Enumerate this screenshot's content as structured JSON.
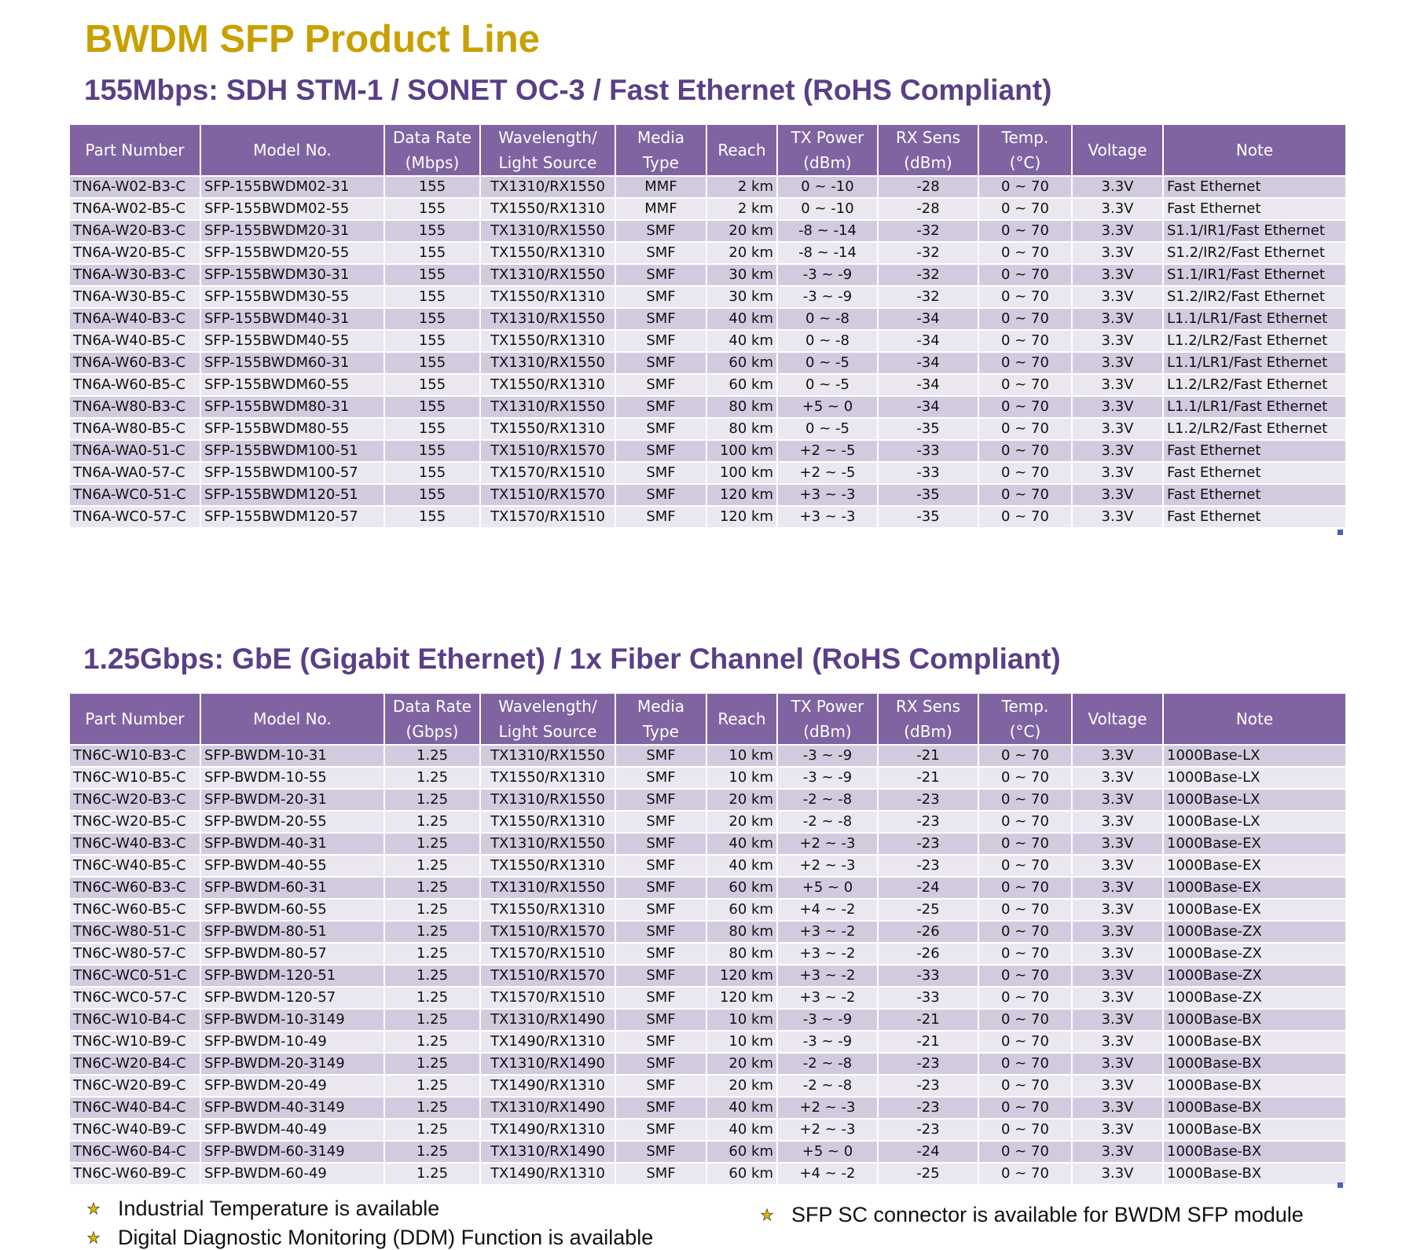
{
  "title": "BWDM SFP Product Line",
  "sections": [
    {
      "heading": "155Mbps: SDH STM-1 / SONET OC-3 / Fast Ethernet (RoHS Compliant)",
      "columns": [
        "Part Number",
        "Model No.",
        "Data Rate (Mbps)",
        "Wavelength/ Light Source",
        "Media Type",
        "Reach",
        "TX Power (dBm)",
        "RX Sens (dBm)",
        "Temp. (°C)",
        "Voltage",
        "Note"
      ],
      "rows": [
        [
          "TN6A-W02-B3-C",
          "SFP-155BWDM02-31",
          "155",
          "TX1310/RX1550",
          "MMF",
          "2 km",
          "0 ~ -10",
          "-28",
          "0 ~ 70",
          "3.3V",
          "Fast Ethernet"
        ],
        [
          "TN6A-W02-B5-C",
          "SFP-155BWDM02-55",
          "155",
          "TX1550/RX1310",
          "MMF",
          "2 km",
          "0 ~ -10",
          "-28",
          "0 ~ 70",
          "3.3V",
          "Fast Ethernet"
        ],
        [
          "TN6A-W20-B3-C",
          "SFP-155BWDM20-31",
          "155",
          "TX1310/RX1550",
          "SMF",
          "20 km",
          "-8 ~ -14",
          "-32",
          "0 ~ 70",
          "3.3V",
          "S1.1/IR1/Fast Ethernet"
        ],
        [
          "TN6A-W20-B5-C",
          "SFP-155BWDM20-55",
          "155",
          "TX1550/RX1310",
          "SMF",
          "20 km",
          "-8 ~ -14",
          "-32",
          "0 ~ 70",
          "3.3V",
          "S1.2/IR2/Fast Ethernet"
        ],
        [
          "TN6A-W30-B3-C",
          "SFP-155BWDM30-31",
          "155",
          "TX1310/RX1550",
          "SMF",
          "30 km",
          "-3 ~ -9",
          "-32",
          "0 ~ 70",
          "3.3V",
          "S1.1/IR1/Fast Ethernet"
        ],
        [
          "TN6A-W30-B5-C",
          "SFP-155BWDM30-55",
          "155",
          "TX1550/RX1310",
          "SMF",
          "30 km",
          "-3 ~ -9",
          "-32",
          "0 ~ 70",
          "3.3V",
          "S1.2/IR2/Fast Ethernet"
        ],
        [
          "TN6A-W40-B3-C",
          "SFP-155BWDM40-31",
          "155",
          "TX1310/RX1550",
          "SMF",
          "40 km",
          "0 ~ -8",
          "-34",
          "0 ~ 70",
          "3.3V",
          "L1.1/LR1/Fast Ethernet"
        ],
        [
          "TN6A-W40-B5-C",
          "SFP-155BWDM40-55",
          "155",
          "TX1550/RX1310",
          "SMF",
          "40 km",
          "0 ~ -8",
          "-34",
          "0 ~ 70",
          "3.3V",
          "L1.2/LR2/Fast Ethernet"
        ],
        [
          "TN6A-W60-B3-C",
          "SFP-155BWDM60-31",
          "155",
          "TX1310/RX1550",
          "SMF",
          "60 km",
          "0 ~ -5",
          "-34",
          "0 ~ 70",
          "3.3V",
          "L1.1/LR1/Fast Ethernet"
        ],
        [
          "TN6A-W60-B5-C",
          "SFP-155BWDM60-55",
          "155",
          "TX1550/RX1310",
          "SMF",
          "60 km",
          "0 ~ -5",
          "-34",
          "0 ~ 70",
          "3.3V",
          "L1.2/LR2/Fast Ethernet"
        ],
        [
          "TN6A-W80-B3-C",
          "SFP-155BWDM80-31",
          "155",
          "TX1310/RX1550",
          "SMF",
          "80 km",
          "+5 ~ 0",
          "-34",
          "0 ~ 70",
          "3.3V",
          "L1.1/LR1/Fast Ethernet"
        ],
        [
          "TN6A-W80-B5-C",
          "SFP-155BWDM80-55",
          "155",
          "TX1550/RX1310",
          "SMF",
          "80 km",
          "0 ~ -5",
          "-35",
          "0 ~ 70",
          "3.3V",
          "L1.2/LR2/Fast Ethernet"
        ],
        [
          "TN6A-WA0-51-C",
          "SFP-155BWDM100-51",
          "155",
          "TX1510/RX1570",
          "SMF",
          "100 km",
          "+2 ~ -5",
          "-33",
          "0 ~ 70",
          "3.3V",
          "Fast Ethernet"
        ],
        [
          "TN6A-WA0-57-C",
          "SFP-155BWDM100-57",
          "155",
          "TX1570/RX1510",
          "SMF",
          "100 km",
          "+2 ~ -5",
          "-33",
          "0 ~ 70",
          "3.3V",
          "Fast Ethernet"
        ],
        [
          "TN6A-WC0-51-C",
          "SFP-155BWDM120-51",
          "155",
          "TX1510/RX1570",
          "SMF",
          "120 km",
          "+3 ~ -3",
          "-35",
          "0 ~ 70",
          "3.3V",
          "Fast Ethernet"
        ],
        [
          "TN6A-WC0-57-C",
          "SFP-155BWDM120-57",
          "155",
          "TX1570/RX1510",
          "SMF",
          "120 km",
          "+3 ~ -3",
          "-35",
          "0 ~ 70",
          "3.3V",
          "Fast Ethernet"
        ]
      ]
    },
    {
      "heading": "1.25Gbps: GbE (Gigabit Ethernet) / 1x Fiber Channel (RoHS Compliant)",
      "columns": [
        "Part Number",
        "Model No.",
        "Data Rate (Gbps)",
        "Wavelength/ Light Source",
        "Media Type",
        "Reach",
        "TX Power (dBm)",
        "RX Sens (dBm)",
        "Temp. (°C)",
        "Voltage",
        "Note"
      ],
      "rows": [
        [
          "TN6C-W10-B3-C",
          "SFP-BWDM-10-31",
          "1.25",
          "TX1310/RX1550",
          "SMF",
          "10 km",
          "-3 ~ -9",
          "-21",
          "0 ~ 70",
          "3.3V",
          "1000Base-LX"
        ],
        [
          "TN6C-W10-B5-C",
          "SFP-BWDM-10-55",
          "1.25",
          "TX1550/RX1310",
          "SMF",
          "10 km",
          "-3 ~ -9",
          "-21",
          "0 ~ 70",
          "3.3V",
          "1000Base-LX"
        ],
        [
          "TN6C-W20-B3-C",
          "SFP-BWDM-20-31",
          "1.25",
          "TX1310/RX1550",
          "SMF",
          "20 km",
          "-2 ~ -8",
          "-23",
          "0 ~ 70",
          "3.3V",
          "1000Base-LX"
        ],
        [
          "TN6C-W20-B5-C",
          "SFP-BWDM-20-55",
          "1.25",
          "TX1550/RX1310",
          "SMF",
          "20 km",
          "-2 ~ -8",
          "-23",
          "0 ~ 70",
          "3.3V",
          "1000Base-LX"
        ],
        [
          "TN6C-W40-B3-C",
          "SFP-BWDM-40-31",
          "1.25",
          "TX1310/RX1550",
          "SMF",
          "40 km",
          "+2 ~ -3",
          "-23",
          "0 ~ 70",
          "3.3V",
          "1000Base-EX"
        ],
        [
          "TN6C-W40-B5-C",
          "SFP-BWDM-40-55",
          "1.25",
          "TX1550/RX1310",
          "SMF",
          "40 km",
          "+2 ~ -3",
          "-23",
          "0 ~ 70",
          "3.3V",
          "1000Base-EX"
        ],
        [
          "TN6C-W60-B3-C",
          "SFP-BWDM-60-31",
          "1.25",
          "TX1310/RX1550",
          "SMF",
          "60 km",
          "+5 ~ 0",
          "-24",
          "0 ~ 70",
          "3.3V",
          "1000Base-EX"
        ],
        [
          "TN6C-W60-B5-C",
          "SFP-BWDM-60-55",
          "1.25",
          "TX1550/RX1310",
          "SMF",
          "60 km",
          "+4 ~ -2",
          "-25",
          "0 ~ 70",
          "3.3V",
          "1000Base-EX"
        ],
        [
          "TN6C-W80-51-C",
          "SFP-BWDM-80-51",
          "1.25",
          "TX1510/RX1570",
          "SMF",
          "80 km",
          "+3 ~ -2",
          "-26",
          "0 ~ 70",
          "3.3V",
          "1000Base-ZX"
        ],
        [
          "TN6C-W80-57-C",
          "SFP-BWDM-80-57",
          "1.25",
          "TX1570/RX1510",
          "SMF",
          "80 km",
          "+3 ~ -2",
          "-26",
          "0 ~ 70",
          "3.3V",
          "1000Base-ZX"
        ],
        [
          "TN6C-WC0-51-C",
          "SFP-BWDM-120-51",
          "1.25",
          "TX1510/RX1570",
          "SMF",
          "120 km",
          "+3 ~ -2",
          "-33",
          "0 ~ 70",
          "3.3V",
          "1000Base-ZX"
        ],
        [
          "TN6C-WC0-57-C",
          "SFP-BWDM-120-57",
          "1.25",
          "TX1570/RX1510",
          "SMF",
          "120 km",
          "+3 ~ -2",
          "-33",
          "0 ~ 70",
          "3.3V",
          "1000Base-ZX"
        ],
        [
          "TN6C-W10-B4-C",
          "SFP-BWDM-10-3149",
          "1.25",
          "TX1310/RX1490",
          "SMF",
          "10 km",
          "-3 ~ -9",
          "-21",
          "0 ~ 70",
          "3.3V",
          "1000Base-BX"
        ],
        [
          "TN6C-W10-B9-C",
          "SFP-BWDM-10-49",
          "1.25",
          "TX1490/RX1310",
          "SMF",
          "10 km",
          "-3 ~ -9",
          "-21",
          "0 ~ 70",
          "3.3V",
          "1000Base-BX"
        ],
        [
          "TN6C-W20-B4-C",
          "SFP-BWDM-20-3149",
          "1.25",
          "TX1310/RX1490",
          "SMF",
          "20 km",
          "-2 ~ -8",
          "-23",
          "0 ~ 70",
          "3.3V",
          "1000Base-BX"
        ],
        [
          "TN6C-W20-B9-C",
          "SFP-BWDM-20-49",
          "1.25",
          "TX1490/RX1310",
          "SMF",
          "20 km",
          "-2 ~ -8",
          "-23",
          "0 ~ 70",
          "3.3V",
          "1000Base-BX"
        ],
        [
          "TN6C-W40-B4-C",
          "SFP-BWDM-40-3149",
          "1.25",
          "TX1310/RX1490",
          "SMF",
          "40 km",
          "+2 ~ -3",
          "-23",
          "0 ~ 70",
          "3.3V",
          "1000Base-BX"
        ],
        [
          "TN6C-W40-B9-C",
          "SFP-BWDM-40-49",
          "1.25",
          "TX1490/RX1310",
          "SMF",
          "40 km",
          "+2 ~ -3",
          "-23",
          "0 ~ 70",
          "3.3V",
          "1000Base-BX"
        ],
        [
          "TN6C-W60-B4-C",
          "SFP-BWDM-60-3149",
          "1.25",
          "TX1310/RX1490",
          "SMF",
          "60 km",
          "+5 ~ 0",
          "-24",
          "0 ~ 70",
          "3.3V",
          "1000Base-BX"
        ],
        [
          "TN6C-W60-B9-C",
          "SFP-BWDM-60-49",
          "1.25",
          "TX1490/RX1310",
          "SMF",
          "60 km",
          "+4 ~ -2",
          "-25",
          "0 ~ 70",
          "3.3V",
          "1000Base-BX"
        ]
      ]
    }
  ],
  "notes": [
    {
      "text": "Industrial Temperature is available",
      "icon": "star-bullet-icon"
    },
    {
      "text": "Digital Diagnostic Monitoring (DDM) Function is available",
      "icon": "star-bullet-icon"
    },
    {
      "text": "SFP SC connector is available for BWDM SFP module",
      "icon": "star-bullet-icon"
    }
  ],
  "colors": {
    "title": "#c8a000",
    "heading": "#5a3f86",
    "header_bg": "#8064a2",
    "row_dark": "#d2cbe0",
    "row_light": "#eae7f0"
  }
}
